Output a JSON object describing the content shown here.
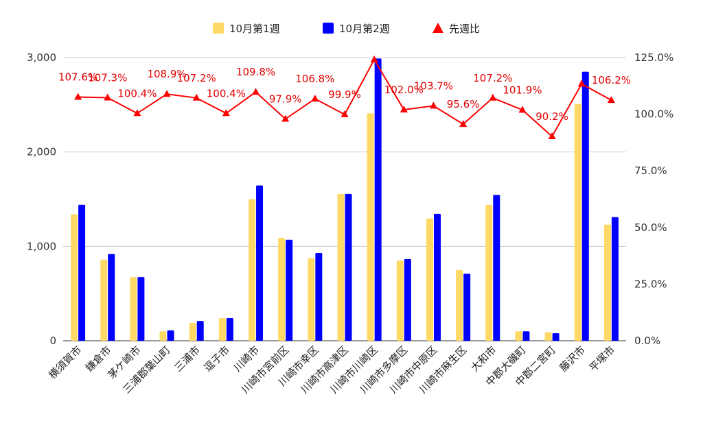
{
  "chart_data": {
    "type": "bar",
    "categories": [
      "横須賀市",
      "鎌倉市",
      "茅ケ崎市",
      "三浦郡葉山町",
      "三浦市",
      "逗子市",
      "川崎市",
      "川崎市宮前区",
      "川崎市幸区",
      "川崎市高津区",
      "川崎市川崎区",
      "川崎市多摩区",
      "川崎市中原区",
      "川崎市麻生区",
      "大和市",
      "中郡大磯町",
      "中郡二宮町",
      "藤沢市",
      "平塚市"
    ],
    "series": [
      {
        "name": "10月第1週",
        "type": "bar",
        "color": "#ffd966",
        "values": [
          1340,
          860,
          675,
          100,
          190,
          240,
          1500,
          1090,
          875,
          1555,
          2410,
          850,
          1295,
          750,
          1440,
          100,
          90,
          2510,
          1230
        ]
      },
      {
        "name": "10月第2週",
        "type": "bar",
        "color": "#0000ff",
        "values": [
          1440,
          920,
          675,
          110,
          210,
          240,
          1645,
          1070,
          930,
          1555,
          2990,
          865,
          1345,
          710,
          1545,
          100,
          80,
          2850,
          1310
        ]
      },
      {
        "name": "先週比",
        "type": "line",
        "color": "#ff0000",
        "axis": "right",
        "values": [
          107.6,
          107.3,
          100.4,
          108.9,
          107.2,
          100.4,
          109.8,
          97.9,
          106.8,
          99.9,
          124.1,
          102.0,
          103.7,
          95.6,
          107.2,
          101.9,
          90.2,
          113.4,
          106.2
        ],
        "labels": [
          "107.6%",
          "107.3%",
          "100.4%",
          "108.9%",
          "107.2%",
          "100.4%",
          "109.8%",
          "97.9%",
          "106.8%",
          "99.9%",
          "",
          "102.0%",
          "103.7%",
          "95.6%",
          "107.2%",
          "101.9%",
          "90.2%",
          "",
          "106.2%"
        ]
      }
    ],
    "y_left": {
      "ylim": [
        0,
        3000
      ],
      "ticks": [
        "0",
        "1,000",
        "2,000",
        "3,000"
      ],
      "tick_values": [
        0,
        1000,
        2000,
        3000
      ]
    },
    "y_right": {
      "ylim": [
        0,
        125
      ],
      "ticks": [
        "0.0%",
        "25.0%",
        "50.0%",
        "75.0%",
        "100.0%",
        "125.0%"
      ],
      "tick_values": [
        0,
        25,
        50,
        75,
        100,
        125
      ]
    },
    "legend": {
      "placement": "top"
    },
    "grid": true,
    "title": ""
  }
}
